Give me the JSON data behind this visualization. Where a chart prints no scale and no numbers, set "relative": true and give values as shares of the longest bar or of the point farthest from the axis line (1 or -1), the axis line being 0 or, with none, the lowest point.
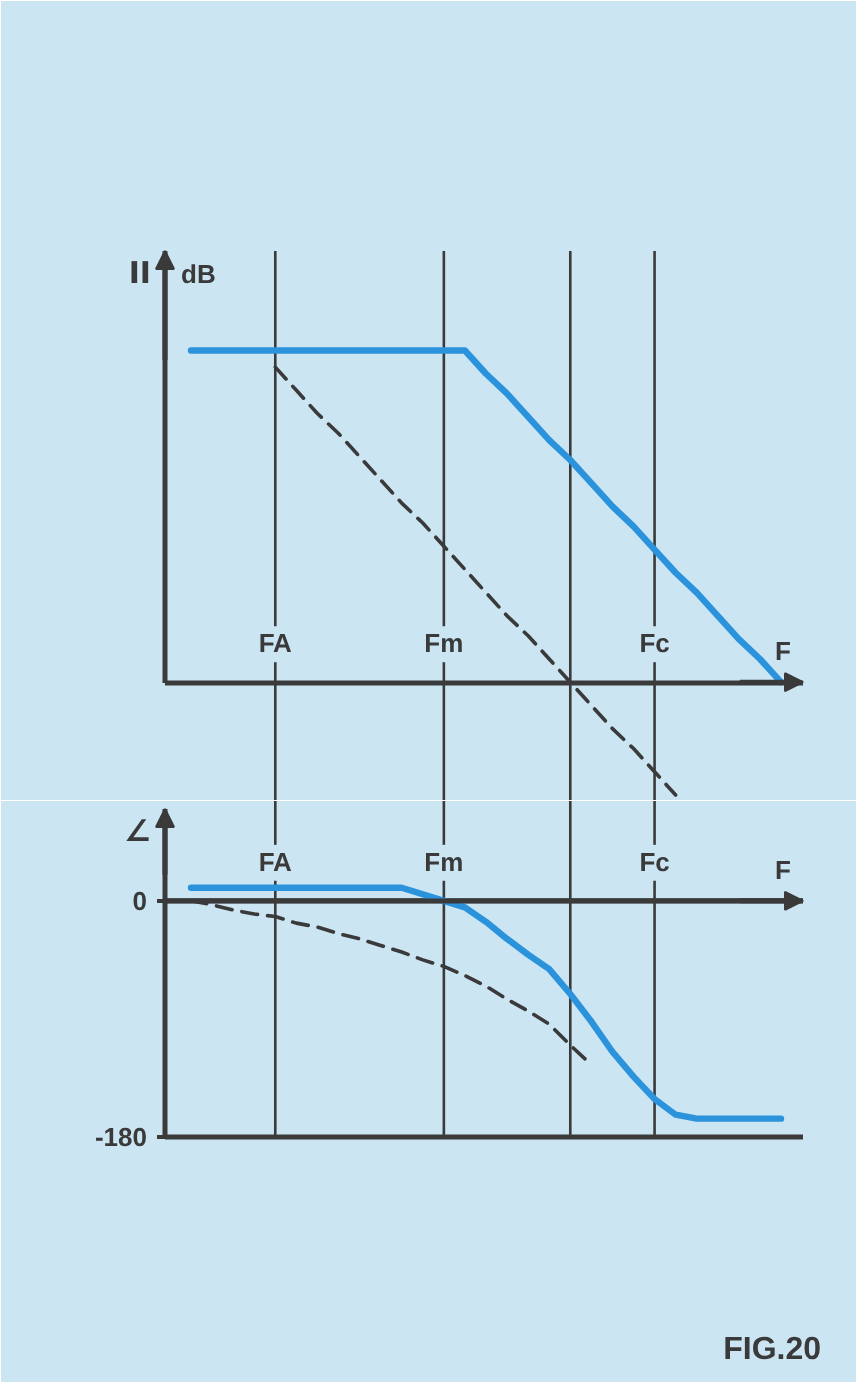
{
  "chart_data": [
    {
      "type": "line",
      "ylabel": "II dB",
      "xlabel": "F",
      "relative": true,
      "tick_labels": "x",
      "grid": true,
      "categories": [
        null,
        null,
        null,
        null,
        "FA",
        null,
        null,
        null,
        null,
        null,
        null,
        null,
        "Fm",
        null,
        null,
        null,
        null,
        null,
        null,
        null,
        null,
        null,
        "Fc",
        null,
        null,
        null,
        null,
        null,
        null
      ],
      "series": [
        {
          "color": "#2b93dc",
          "line_style": "solid",
          "values": [
            1,
            1,
            1,
            1,
            1,
            1,
            1,
            1,
            1,
            1,
            1,
            1,
            1,
            1,
            0.93,
            0.87,
            0.8,
            0.73,
            0.67,
            0.6,
            0.53,
            0.47,
            0.4,
            0.33,
            0.27,
            0.2,
            0.13,
            0.07,
            0
          ]
        },
        {
          "color": "#3a3a3a",
          "line_style": "dashed",
          "values": [
            null,
            null,
            null,
            null,
            0.95,
            0.88,
            0.81,
            0.75,
            0.68,
            0.61,
            0.54,
            0.48,
            0.41,
            0.34,
            0.27,
            0.2,
            0.14,
            0.07,
            0,
            -0.07,
            -0.14,
            -0.2,
            -0.27,
            -0.34,
            null,
            null,
            null,
            null,
            null
          ]
        }
      ]
    },
    {
      "type": "line",
      "ylabel": "∠",
      "xlabel": "F",
      "ylim": [
        -180,
        70
      ],
      "yticks": [
        0,
        -180
      ],
      "grid": true,
      "categories": [
        null,
        null,
        null,
        null,
        "FA",
        null,
        null,
        null,
        null,
        null,
        null,
        null,
        "Fm",
        null,
        null,
        null,
        null,
        null,
        null,
        null,
        null,
        null,
        "Fc",
        null,
        null,
        null,
        null,
        null,
        null
      ],
      "series": [
        {
          "color": "#2b93dc",
          "line_style": "solid",
          "values": [
            10,
            10,
            10,
            10,
            10,
            10,
            10,
            10,
            10,
            10,
            10,
            5,
            0,
            -5,
            -16,
            -29,
            -41,
            -52,
            -71,
            -92,
            -115,
            -134,
            -151,
            -163,
            -166,
            -166,
            -166,
            -166,
            -166
          ]
        },
        {
          "color": "#3a3a3a",
          "line_style": "dashed",
          "values": [
            0,
            -3,
            -7,
            -10,
            -12,
            -17,
            -20,
            -25,
            -29,
            -34,
            -39,
            -45,
            -50,
            -57,
            -65,
            -75,
            -84,
            -94,
            -110,
            -125,
            null,
            null,
            null,
            null,
            null,
            null,
            null,
            null,
            null
          ]
        }
      ],
      "annotations": [
        "FIG.20"
      ]
    }
  ]
}
